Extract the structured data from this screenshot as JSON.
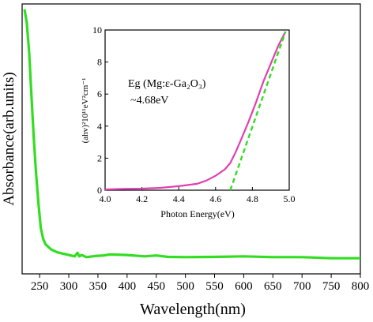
{
  "chart_data": [
    {
      "id": "main",
      "type": "line",
      "xlabel": "Wavelength(nm)",
      "ylabel": "Absorbance(arb.units)",
      "xlim": [
        220,
        800
      ],
      "ylim": [
        0,
        1
      ],
      "x_ticks": [
        250,
        300,
        350,
        400,
        450,
        500,
        550,
        600,
        650,
        700,
        750,
        800
      ],
      "y_ticks_shown": false,
      "series": [
        {
          "color": "#33dd22",
          "x": [
            224,
            228,
            232,
            236,
            240,
            244,
            248,
            252,
            256,
            260,
            265,
            270,
            280,
            290,
            300,
            310,
            315,
            318,
            322,
            330,
            345,
            360,
            370,
            400,
            430,
            450,
            470,
            500,
            550,
            600,
            650,
            700,
            750,
            800
          ],
          "y": [
            0.98,
            0.93,
            0.82,
            0.66,
            0.5,
            0.37,
            0.26,
            0.17,
            0.13,
            0.11,
            0.1,
            0.09,
            0.08,
            0.075,
            0.07,
            0.065,
            0.078,
            0.065,
            0.07,
            0.062,
            0.066,
            0.068,
            0.072,
            0.07,
            0.065,
            0.068,
            0.063,
            0.062,
            0.063,
            0.065,
            0.062,
            0.062,
            0.058,
            0.058
          ]
        }
      ]
    },
    {
      "id": "inset",
      "type": "line",
      "xlabel": "Photon Energy(eV)",
      "ylabel": "(ahv)²10¹¹eV²cm⁻¹",
      "xlim": [
        4.0,
        5.0
      ],
      "ylim": [
        0,
        10
      ],
      "x_ticks": [
        4.0,
        4.2,
        4.4,
        4.6,
        4.8,
        5.0
      ],
      "y_ticks": [
        0,
        2,
        4,
        6,
        8,
        10
      ],
      "annotation_lines": [
        "Eg (Mg:ε-Ga₂O₃)",
        "~4.68eV"
      ],
      "series": [
        {
          "color": "#e040b0",
          "x": [
            4.0,
            4.1,
            4.2,
            4.3,
            4.4,
            4.5,
            4.55,
            4.6,
            4.65,
            4.68,
            4.71,
            4.74,
            4.78,
            4.82,
            4.86,
            4.9,
            4.94,
            4.98
          ],
          "y": [
            0.05,
            0.08,
            0.1,
            0.15,
            0.25,
            0.4,
            0.6,
            0.9,
            1.3,
            1.7,
            2.4,
            3.2,
            4.3,
            5.5,
            6.8,
            7.9,
            9.0,
            9.9
          ]
        },
        {
          "color": "#33dd22",
          "dashed": true,
          "x": [
            4.68,
            4.98
          ],
          "y": [
            0,
            9.9
          ]
        }
      ]
    }
  ]
}
